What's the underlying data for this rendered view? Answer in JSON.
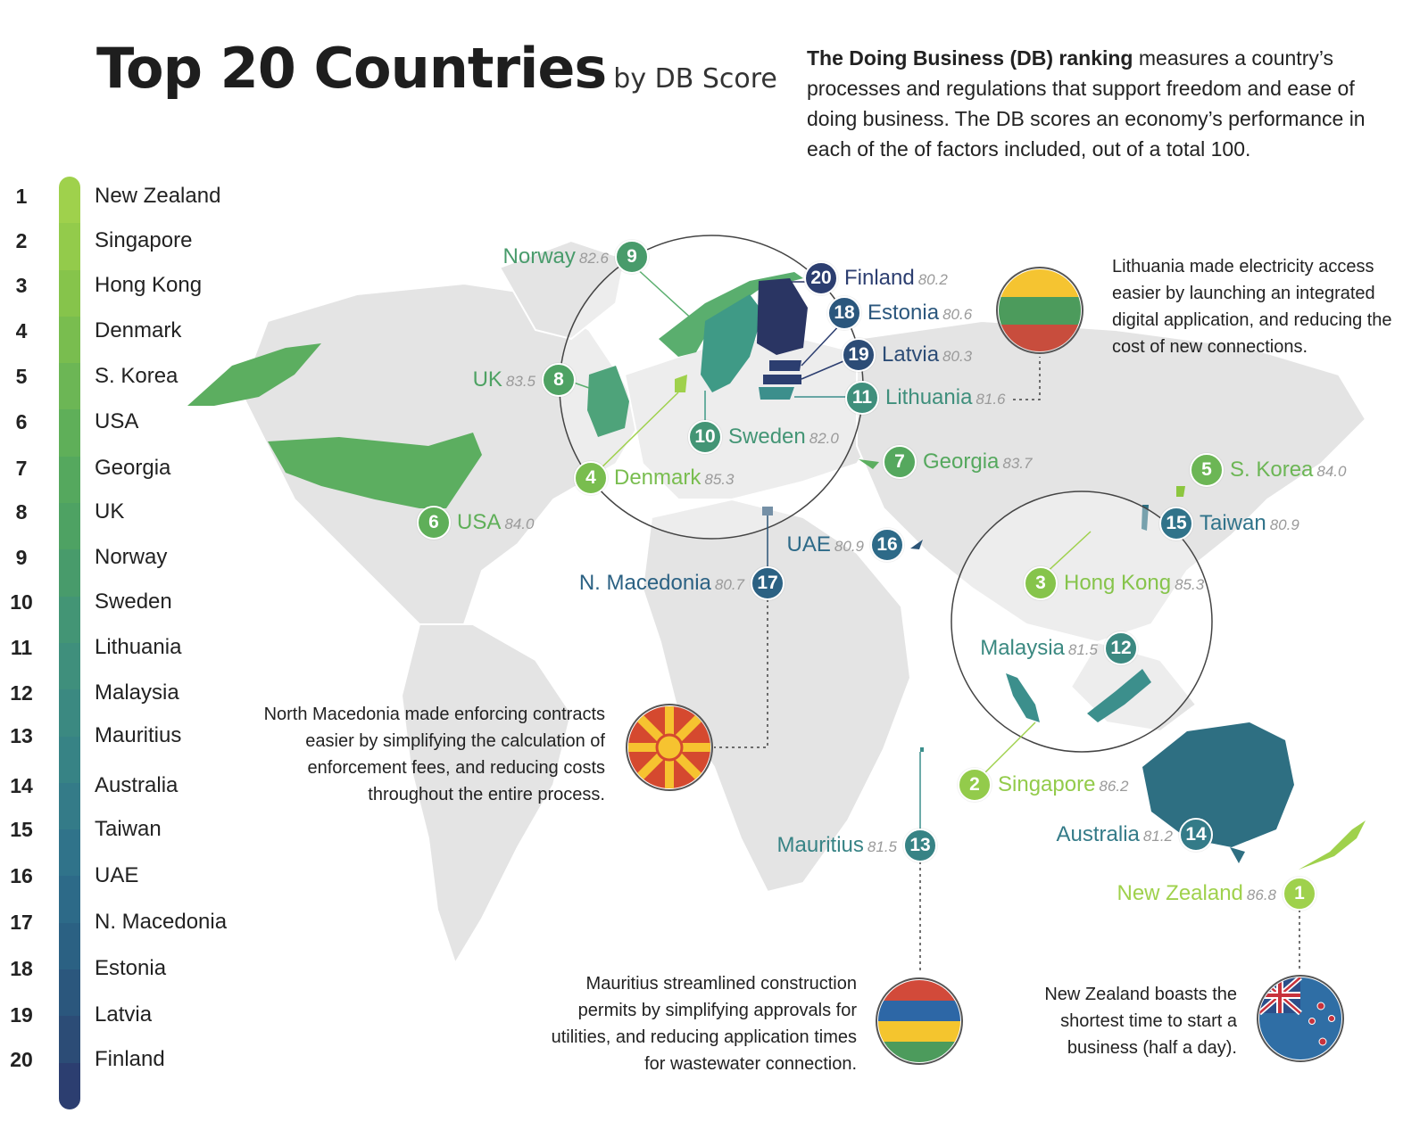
{
  "title": {
    "main": "Top 20 Countries",
    "sub": "by DB Score"
  },
  "intro": {
    "bold": "The Doing Business (DB) ranking",
    "text": " measures a country’s processes and regulations that support freedom and ease of doing business. The DB scores an economy’s performance in each of the of factors included, out of a total 100."
  },
  "colors": {
    "green": "#8cc63f",
    "lightgreen": "#9fd14c",
    "midgreen": "#5aae5a",
    "teal": "#3c8f8c",
    "darkteal": "#2f6f86",
    "navy": "#2c3e70",
    "land": "#e3e3e3"
  },
  "ranking": [
    {
      "rank": "1",
      "country": "New Zealand",
      "score": "86.8"
    },
    {
      "rank": "2",
      "country": "Singapore",
      "score": "86.2"
    },
    {
      "rank": "3",
      "country": "Hong Kong",
      "score": "85.3"
    },
    {
      "rank": "4",
      "country": "Denmark",
      "score": "85.3"
    },
    {
      "rank": "5",
      "country": "S. Korea",
      "score": "84.0"
    },
    {
      "rank": "6",
      "country": "USA",
      "score": "84.0"
    },
    {
      "rank": "7",
      "country": "Georgia",
      "score": "83.7"
    },
    {
      "rank": "8",
      "country": "UK",
      "score": "83.5"
    },
    {
      "rank": "9",
      "country": "Norway",
      "score": "82.6"
    },
    {
      "rank": "10",
      "country": "Sweden",
      "score": "82.0"
    },
    {
      "rank": "11",
      "country": "Lithuania",
      "score": "81.6"
    },
    {
      "rank": "12",
      "country": "Malaysia",
      "score": "81.5"
    },
    {
      "rank": "13",
      "country": "Mauritius",
      "score": "81.5"
    },
    {
      "rank": "14",
      "country": "Australia",
      "score": "81.2"
    },
    {
      "rank": "15",
      "country": "Taiwan",
      "score": "80.9"
    },
    {
      "rank": "16",
      "country": "UAE",
      "score": "80.9"
    },
    {
      "rank": "17",
      "country": "N. Macedonia",
      "score": "80.7"
    },
    {
      "rank": "18",
      "country": "Estonia",
      "score": "80.6"
    },
    {
      "rank": "19",
      "country": "Latvia",
      "score": "80.3"
    },
    {
      "rank": "20",
      "country": "Finland",
      "score": "80.2"
    }
  ],
  "notes": {
    "lithuania": "Lithuania made electricity access easier by launching an integrated digital application, and reducing the cost of new connections.",
    "macedonia": "North Macedonia made enforcing contracts easier by simplifying the calculation of enforcement fees, and reducing costs throughout the entire process.",
    "mauritius": "Mauritius streamlined construction permits by simplifying approvals for utilities, and reducing application times for wastewater connection.",
    "newzealand": "New Zealand boasts the shortest time to start a business (half a day)."
  },
  "flags": {
    "lithuania": "lithuania-flag-icon",
    "macedonia": "north-macedonia-flag-icon",
    "mauritius": "mauritius-flag-icon",
    "newzealand": "new-zealand-flag-icon"
  }
}
